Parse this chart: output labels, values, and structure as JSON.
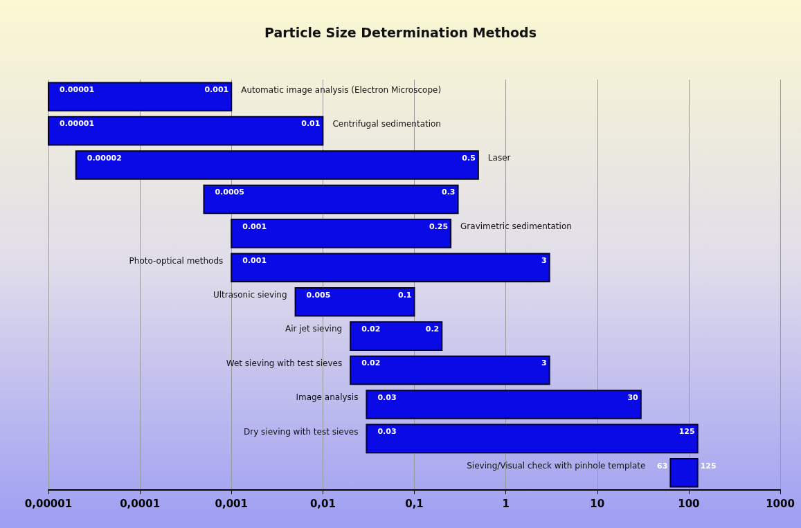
{
  "chart_data": {
    "type": "bar",
    "orientation": "horizontal",
    "title": "Particle Size Determination Methods",
    "categories": [
      "Automatic image analysis (Electron Microscope)",
      "Centrifugal sedimentation",
      "Laser",
      null,
      "Gravimetric sedimentation",
      "Photo-optical methods",
      "Ultrasonic sieving",
      "Air jet sieving",
      "Wet sieving with test sieves",
      "Image analysis",
      "Dry sieving with test sieves",
      "Sieving/Visual check with pinhole template"
    ],
    "base": [
      1e-05,
      1e-05,
      2e-05,
      0.0005,
      0.001,
      0.001,
      0.005,
      0.02,
      0.02,
      0.03,
      0.03,
      63
    ],
    "values": [
      0.00099,
      0.00999,
      0.49998,
      0.2995,
      0.249,
      2.999,
      0.095,
      0.18,
      2.98,
      29.97,
      124.97,
      62
    ],
    "value_labels": [
      "0.001",
      "0.01",
      "0.5",
      "0.3",
      "0.25",
      "3",
      "0.1",
      "0.2",
      "3",
      "30",
      "125",
      "125"
    ],
    "annotations": [
      {
        "text": "0.00001",
        "x": 1e-05,
        "y": "Automatic image analysis (Electron Microscope)"
      },
      {
        "text": "0.00001",
        "x": 1e-05,
        "y": "Centrifugal sedimentation"
      },
      {
        "text": "0.00002",
        "x": 2e-05,
        "y": "Laser"
      },
      {
        "text": "0.0005",
        "x": 0.0005
      },
      {
        "text": "0.001",
        "x": 0.001,
        "y": "Gravimetric sedimentation"
      },
      {
        "text": "0.001",
        "x": 0.001,
        "y": "Photo-optical methods"
      },
      {
        "text": "0.005",
        "x": 0.005,
        "y": "Ultrasonic sieving"
      },
      {
        "text": "0.02",
        "x": 0.02,
        "y": "Air jet sieving"
      },
      {
        "text": "0.02",
        "x": 0.02,
        "y": "Wet sieving with test sieves"
      },
      {
        "text": "0.03",
        "x": 0.03,
        "y": "Image analysis"
      },
      {
        "text": "0.03",
        "x": 0.03,
        "y": "Dry sieving with test sieves"
      },
      {
        "text": "63",
        "x": 63,
        "y": "Sieving/Visual check with pinhole template"
      }
    ],
    "color": "#0a0ae6",
    "log": "x",
    "xlim": [
      1e-05,
      1000
    ],
    "xticks": [
      {
        "value": 1e-05,
        "label": "0,00001"
      },
      {
        "value": 0.0001,
        "label": "0,0001"
      },
      {
        "value": 0.001,
        "label": "0,001"
      },
      {
        "value": 0.01,
        "label": "0,01"
      },
      {
        "value": 0.1,
        "label": "0,1"
      },
      1,
      10,
      100,
      1000
    ],
    "grid": "x"
  }
}
